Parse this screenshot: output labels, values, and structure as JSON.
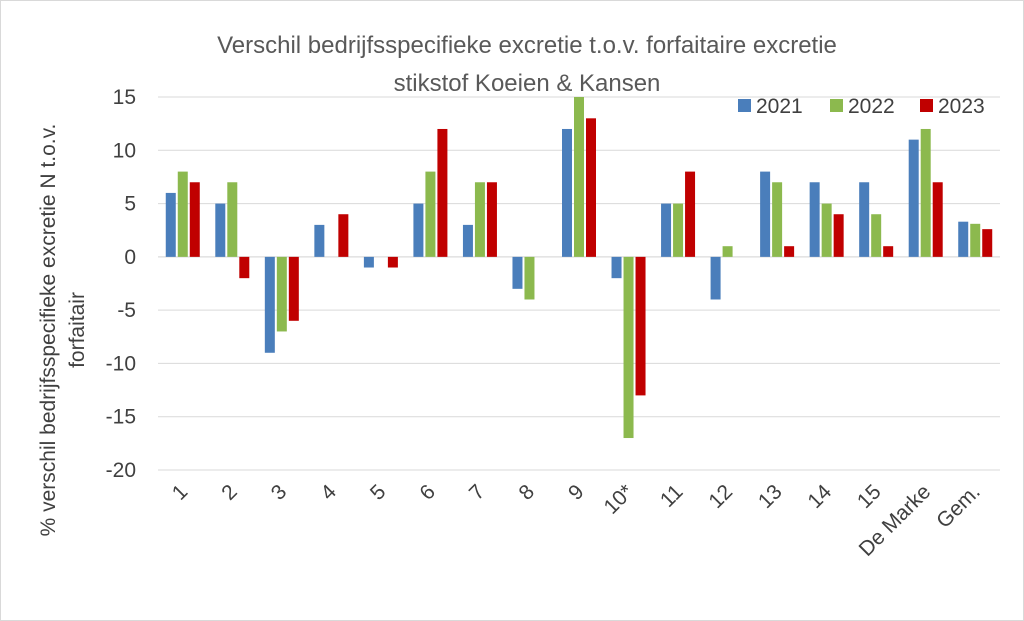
{
  "chart_data": {
    "type": "bar",
    "title": [
      "Verschil bedrijfsspecifieke excretie t.o.v. forfaitaire excretie",
      "stikstof Koeien & Kansen"
    ],
    "ylabel": [
      "% verschil bedrijfsspecifieke excretie N t.o.v.",
      "forfaitair"
    ],
    "xlabel": "",
    "ylim": [
      -20,
      15
    ],
    "yticks": [
      15,
      10,
      5,
      0,
      -5,
      -10,
      -15,
      -20
    ],
    "grid": true,
    "legend_position": "top-right",
    "categories": [
      "1",
      "2",
      "3",
      "4",
      "5",
      "6",
      "7",
      "8",
      "9",
      "10*",
      "11",
      "12",
      "13",
      "14",
      "15",
      "De Marke",
      "Gem."
    ],
    "series": [
      {
        "name": "2021",
        "color": "#4a7ebb",
        "values": [
          6,
          5,
          -9,
          3,
          -1,
          5,
          3,
          -3,
          12,
          -2,
          5,
          -4,
          8,
          7,
          7,
          11,
          3.3
        ]
      },
      {
        "name": "2022",
        "color": "#8cb94e",
        "values": [
          8,
          7,
          -7,
          0,
          0,
          8,
          7,
          -4,
          15,
          -17,
          5,
          1,
          7,
          5,
          4,
          12,
          3.1
        ]
      },
      {
        "name": "2023",
        "color": "#c00000",
        "values": [
          7,
          -2,
          -6,
          4,
          -1,
          12,
          7,
          0,
          13,
          -13,
          8,
          0,
          1,
          4,
          1,
          7,
          2.6
        ]
      }
    ]
  }
}
